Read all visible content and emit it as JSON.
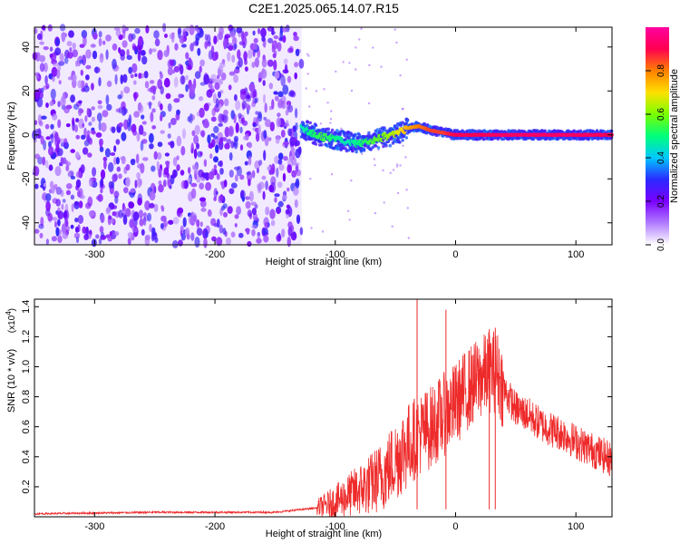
{
  "title": "C2E1.2025.065.14.07.R15",
  "chart_data": [
    {
      "type": "heatmap",
      "xlabel": "Height of straight line (km)",
      "ylabel": "Frequency (Hz)",
      "xlim": [
        -350,
        130
      ],
      "ylim": [
        -50,
        49
      ],
      "xticks": [
        -300,
        -200,
        -100,
        0,
        100
      ],
      "yticks": [
        -40,
        -20,
        0,
        20,
        40
      ],
      "noise_region_x": [
        -350,
        -128
      ],
      "signal_track": {
        "x": [
          -128,
          -120,
          -110,
          -100,
          -90,
          -80,
          -70,
          -60,
          -50,
          -40,
          -30,
          -20,
          -10,
          0,
          20,
          40,
          60,
          80,
          100,
          130
        ],
        "freq": [
          3,
          1,
          -1,
          -2,
          -3,
          -4,
          -3,
          -1,
          0,
          3,
          4,
          2,
          1,
          0,
          0,
          0,
          0,
          0,
          0,
          0
        ],
        "normalized_amplitude": [
          0.45,
          0.5,
          0.55,
          0.5,
          0.45,
          0.5,
          0.55,
          0.6,
          0.65,
          0.75,
          0.8,
          0.85,
          0.85,
          0.9,
          0.9,
          0.92,
          0.92,
          0.92,
          0.92,
          0.9
        ]
      },
      "colorbar": {
        "label": "Normalized spectral amplitude",
        "range": [
          0.0,
          1.0
        ],
        "ticks": [
          "0.0",
          "0.2",
          "0.4",
          "0.6",
          "0.8"
        ],
        "colors": [
          "#ffffff",
          "#b07cff",
          "#7a00ff",
          "#2a2aff",
          "#00c8ff",
          "#00ff7a",
          "#7aff00",
          "#ffe000",
          "#ff8000",
          "#ff0050",
          "#ff00a0"
        ]
      }
    },
    {
      "type": "line",
      "xlabel": "Height of straight line (km)",
      "ylabel": "SNR (10 * v/v)",
      "y_multiplier": "(x10",
      "y_multiplier_exp": "4",
      "xlim": [
        -350,
        130
      ],
      "ylim": [
        0,
        1.45
      ],
      "xticks": [
        -300,
        -200,
        -100,
        0,
        100
      ],
      "yticks": [
        "0.2",
        "0.4",
        "0.6",
        "0.8",
        "1.0",
        "1.2",
        "1.4"
      ],
      "series": [
        {
          "color": "#ee2a2a",
          "x": [
            -350,
            -250,
            -150,
            -115,
            -100,
            -90,
            -80,
            -70,
            -60,
            -50,
            -40,
            -30,
            -20,
            -10,
            0,
            10,
            20,
            30,
            35,
            40,
            50,
            60,
            70,
            80,
            90,
            100,
            110,
            120,
            130
          ],
          "y": [
            0.02,
            0.03,
            0.03,
            0.06,
            0.1,
            0.14,
            0.18,
            0.22,
            0.28,
            0.38,
            0.48,
            0.55,
            0.6,
            0.68,
            0.75,
            0.85,
            0.92,
            0.98,
            0.96,
            0.85,
            0.72,
            0.68,
            0.62,
            0.58,
            0.55,
            0.5,
            0.46,
            0.42,
            0.38
          ],
          "spikes": [
            {
              "x": -32,
              "y": 1.45
            },
            {
              "x": -8,
              "y": 1.38
            },
            {
              "x": 28,
              "y": 1.25
            },
            {
              "x": 33,
              "y": 1.26
            }
          ]
        }
      ]
    }
  ]
}
